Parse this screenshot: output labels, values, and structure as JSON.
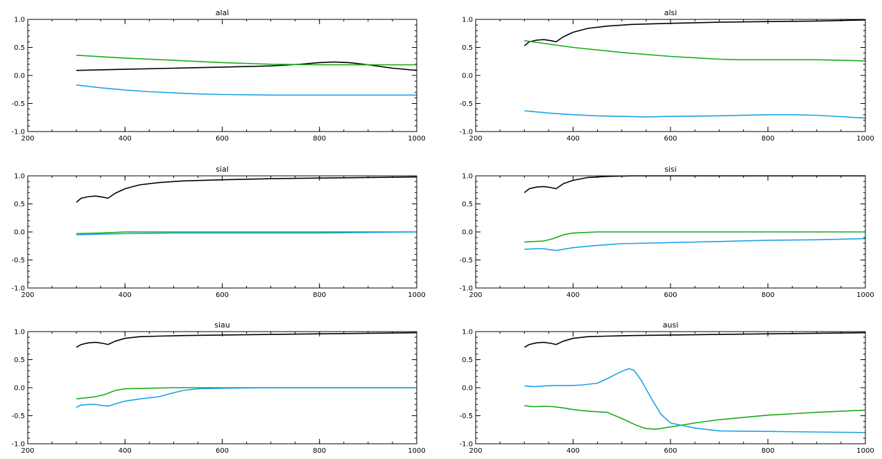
{
  "colors": {
    "black": "#000000",
    "green": "#1aaa1a",
    "blue": "#1aa3e6"
  },
  "chart_data": [
    {
      "type": "line",
      "title": "alal",
      "xlim": [
        200,
        1000
      ],
      "ylim": [
        -1.0,
        1.0
      ],
      "xticks": [
        200,
        400,
        600,
        800,
        1000
      ],
      "yticks": [
        -1.0,
        -0.5,
        0.0,
        0.5,
        1.0
      ],
      "series": [
        {
          "color": "black",
          "x": [
            300,
            400,
            500,
            600,
            700,
            760,
            800,
            830,
            860,
            900,
            950,
            1000
          ],
          "y": [
            0.09,
            0.11,
            0.13,
            0.15,
            0.17,
            0.2,
            0.23,
            0.24,
            0.23,
            0.19,
            0.13,
            0.09
          ]
        },
        {
          "color": "green",
          "x": [
            300,
            400,
            500,
            600,
            700,
            800,
            900,
            1000
          ],
          "y": [
            0.36,
            0.31,
            0.27,
            0.23,
            0.2,
            0.19,
            0.19,
            0.19
          ]
        },
        {
          "color": "blue",
          "x": [
            300,
            350,
            400,
            450,
            500,
            550,
            600,
            700,
            800,
            900,
            1000
          ],
          "y": [
            -0.17,
            -0.22,
            -0.26,
            -0.29,
            -0.31,
            -0.33,
            -0.34,
            -0.35,
            -0.35,
            -0.35,
            -0.35
          ]
        }
      ]
    },
    {
      "type": "line",
      "title": "alsi",
      "xlim": [
        200,
        1000
      ],
      "ylim": [
        -1.0,
        1.0
      ],
      "xticks": [
        200,
        400,
        600,
        800,
        1000
      ],
      "yticks": [
        -1.0,
        -0.5,
        0.0,
        0.5,
        1.0
      ],
      "series": [
        {
          "color": "black",
          "x": [
            300,
            310,
            325,
            340,
            355,
            365,
            380,
            400,
            430,
            470,
            520,
            600,
            700,
            800,
            900,
            1000
          ],
          "y": [
            0.53,
            0.6,
            0.63,
            0.64,
            0.62,
            0.6,
            0.69,
            0.77,
            0.84,
            0.88,
            0.91,
            0.93,
            0.95,
            0.96,
            0.97,
            0.99
          ]
        },
        {
          "color": "green",
          "x": [
            300,
            400,
            500,
            600,
            700,
            740,
            800,
            900,
            1000
          ],
          "y": [
            0.62,
            0.5,
            0.41,
            0.34,
            0.29,
            0.28,
            0.28,
            0.28,
            0.26
          ]
        },
        {
          "color": "blue",
          "x": [
            300,
            350,
            400,
            450,
            500,
            550,
            600,
            700,
            800,
            850,
            900,
            1000
          ],
          "y": [
            -0.63,
            -0.67,
            -0.7,
            -0.72,
            -0.73,
            -0.74,
            -0.73,
            -0.72,
            -0.7,
            -0.7,
            -0.71,
            -0.76
          ]
        }
      ]
    },
    {
      "type": "line",
      "title": "sial",
      "xlim": [
        200,
        1000
      ],
      "ylim": [
        -1.0,
        1.0
      ],
      "xticks": [
        200,
        400,
        600,
        800,
        1000
      ],
      "yticks": [
        -1.0,
        -0.5,
        0.0,
        0.5,
        1.0
      ],
      "series": [
        {
          "color": "black",
          "x": [
            300,
            310,
            325,
            340,
            355,
            365,
            380,
            400,
            430,
            470,
            520,
            600,
            700,
            800,
            900,
            1000
          ],
          "y": [
            0.53,
            0.6,
            0.63,
            0.64,
            0.62,
            0.6,
            0.69,
            0.77,
            0.84,
            0.88,
            0.91,
            0.93,
            0.95,
            0.96,
            0.97,
            0.98
          ]
        },
        {
          "color": "green",
          "x": [
            300,
            350,
            400,
            500,
            600,
            700,
            800,
            900,
            1000
          ],
          "y": [
            -0.03,
            -0.02,
            0.0,
            0.0,
            0.0,
            0.0,
            0.0,
            0.0,
            0.0
          ]
        },
        {
          "color": "blue",
          "x": [
            300,
            350,
            400,
            500,
            600,
            700,
            800,
            900,
            1000
          ],
          "y": [
            -0.05,
            -0.04,
            -0.03,
            -0.02,
            -0.02,
            -0.02,
            -0.02,
            -0.01,
            0.0
          ]
        }
      ]
    },
    {
      "type": "line",
      "title": "sisi",
      "xlim": [
        200,
        1000
      ],
      "ylim": [
        -1.0,
        1.0
      ],
      "xticks": [
        200,
        400,
        600,
        800,
        1000
      ],
      "yticks": [
        -1.0,
        -0.5,
        0.0,
        0.5,
        1.0
      ],
      "series": [
        {
          "color": "black",
          "x": [
            300,
            310,
            325,
            340,
            355,
            365,
            380,
            400,
            430,
            470,
            520,
            600,
            700,
            800,
            900,
            1000
          ],
          "y": [
            0.7,
            0.77,
            0.8,
            0.81,
            0.79,
            0.77,
            0.86,
            0.92,
            0.97,
            0.99,
            1.0,
            1.0,
            1.0,
            1.0,
            1.0,
            1.0
          ]
        },
        {
          "color": "green",
          "x": [
            300,
            320,
            340,
            355,
            365,
            380,
            400,
            450,
            500,
            600,
            700,
            800,
            900,
            1000
          ],
          "y": [
            -0.18,
            -0.17,
            -0.16,
            -0.13,
            -0.1,
            -0.05,
            -0.02,
            0.0,
            0.0,
            0.0,
            0.0,
            0.0,
            0.0,
            0.0
          ]
        },
        {
          "color": "blue",
          "x": [
            300,
            320,
            340,
            355,
            365,
            380,
            400,
            450,
            500,
            600,
            700,
            800,
            900,
            1000
          ],
          "y": [
            -0.31,
            -0.3,
            -0.3,
            -0.32,
            -0.33,
            -0.31,
            -0.28,
            -0.24,
            -0.21,
            -0.19,
            -0.17,
            -0.15,
            -0.14,
            -0.12
          ]
        }
      ]
    },
    {
      "type": "line",
      "title": "siau",
      "xlim": [
        200,
        1000
      ],
      "ylim": [
        -1.0,
        1.0
      ],
      "xticks": [
        200,
        400,
        600,
        800,
        1000
      ],
      "yticks": [
        -1.0,
        -0.5,
        0.0,
        0.5,
        1.0
      ],
      "series": [
        {
          "color": "black",
          "x": [
            300,
            310,
            325,
            340,
            355,
            365,
            380,
            400,
            430,
            470,
            520,
            600,
            700,
            800,
            900,
            1000
          ],
          "y": [
            0.72,
            0.77,
            0.8,
            0.81,
            0.79,
            0.77,
            0.83,
            0.88,
            0.91,
            0.92,
            0.93,
            0.94,
            0.95,
            0.96,
            0.97,
            0.98
          ]
        },
        {
          "color": "green",
          "x": [
            300,
            320,
            340,
            355,
            365,
            380,
            400,
            450,
            500,
            600,
            700,
            800,
            900,
            1000
          ],
          "y": [
            -0.2,
            -0.18,
            -0.16,
            -0.13,
            -0.1,
            -0.05,
            -0.02,
            -0.01,
            0.0,
            0.0,
            0.0,
            0.0,
            0.0,
            0.0
          ]
        },
        {
          "color": "blue",
          "x": [
            300,
            310,
            325,
            340,
            355,
            365,
            380,
            400,
            430,
            470,
            500,
            520,
            550,
            600,
            700,
            800,
            900,
            1000
          ],
          "y": [
            -0.35,
            -0.31,
            -0.3,
            -0.3,
            -0.32,
            -0.33,
            -0.29,
            -0.24,
            -0.2,
            -0.16,
            -0.09,
            -0.05,
            -0.02,
            -0.01,
            0.0,
            0.0,
            0.0,
            0.0
          ]
        }
      ]
    },
    {
      "type": "line",
      "title": "ausi",
      "xlim": [
        200,
        1000
      ],
      "ylim": [
        -1.0,
        1.0
      ],
      "xticks": [
        200,
        400,
        600,
        800,
        1000
      ],
      "yticks": [
        -1.0,
        -0.5,
        0.0,
        0.5,
        1.0
      ],
      "series": [
        {
          "color": "black",
          "x": [
            300,
            310,
            325,
            340,
            355,
            365,
            380,
            400,
            430,
            470,
            520,
            600,
            700,
            800,
            900,
            1000
          ],
          "y": [
            0.72,
            0.77,
            0.8,
            0.81,
            0.79,
            0.77,
            0.83,
            0.88,
            0.91,
            0.92,
            0.93,
            0.94,
            0.95,
            0.96,
            0.97,
            0.98
          ]
        },
        {
          "color": "green",
          "x": [
            300,
            320,
            340,
            360,
            380,
            400,
            420,
            450,
            470,
            500,
            530,
            550,
            570,
            600,
            650,
            700,
            800,
            900,
            1000
          ],
          "y": [
            -0.32,
            -0.34,
            -0.33,
            -0.34,
            -0.36,
            -0.39,
            -0.41,
            -0.43,
            -0.44,
            -0.55,
            -0.67,
            -0.73,
            -0.74,
            -0.7,
            -0.63,
            -0.57,
            -0.49,
            -0.44,
            -0.4
          ]
        },
        {
          "color": "blue",
          "x": [
            300,
            320,
            340,
            360,
            380,
            400,
            420,
            450,
            470,
            490,
            505,
            515,
            525,
            540,
            560,
            580,
            600,
            650,
            700,
            800,
            900,
            1000
          ],
          "y": [
            0.03,
            0.02,
            0.03,
            0.04,
            0.04,
            0.04,
            0.05,
            0.08,
            0.16,
            0.25,
            0.31,
            0.34,
            0.31,
            0.13,
            -0.18,
            -0.47,
            -0.63,
            -0.72,
            -0.77,
            -0.78,
            -0.79,
            -0.8
          ]
        }
      ]
    }
  ]
}
